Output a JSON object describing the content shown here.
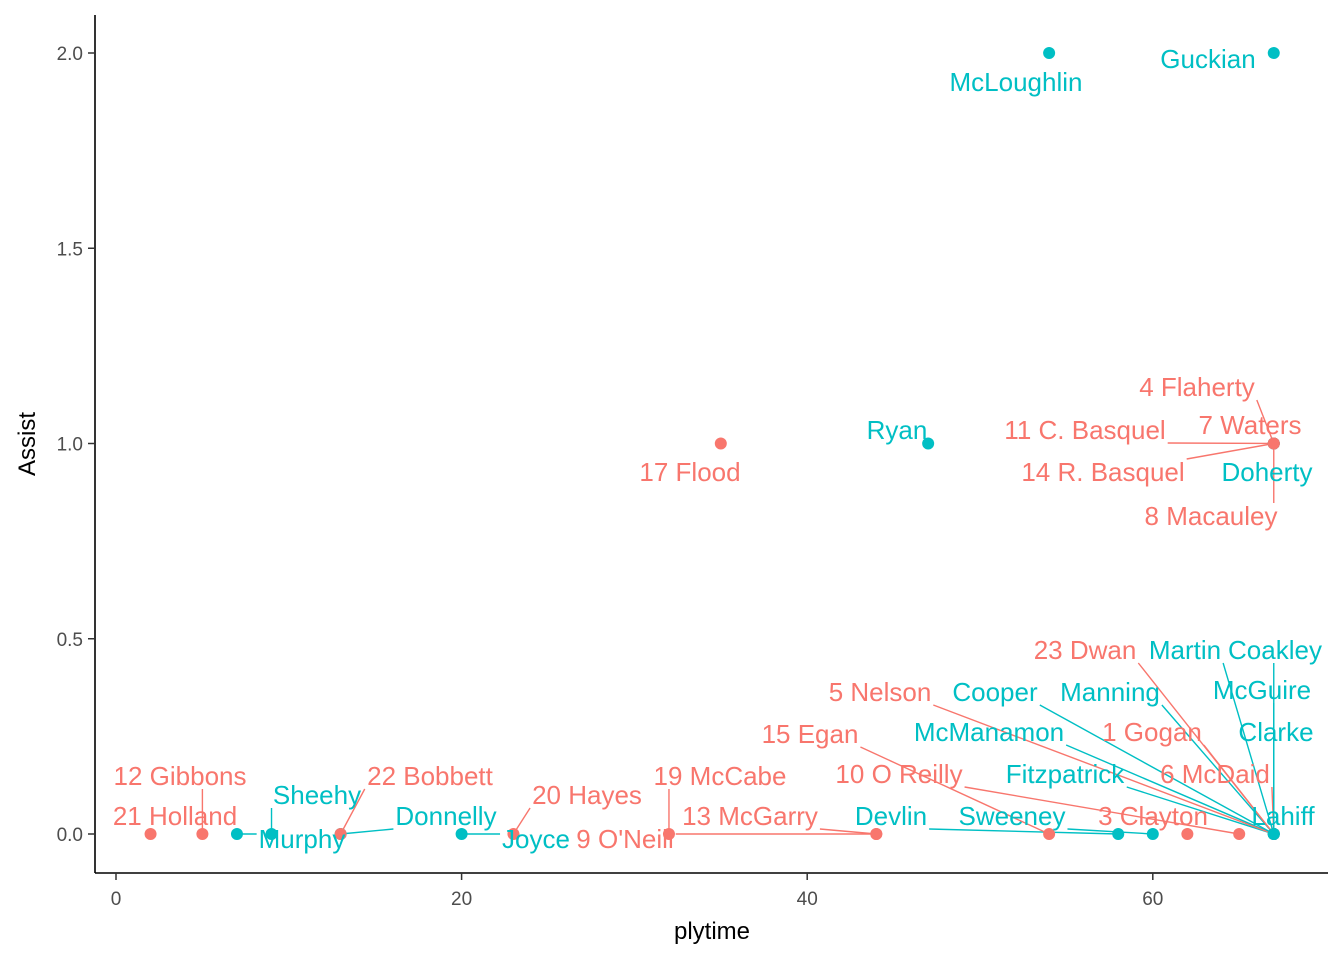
{
  "chart_data": {
    "type": "scatter",
    "title": "",
    "xlabel": "plytime",
    "ylabel": "Assist",
    "xlim": [
      -1,
      70
    ],
    "ylim": [
      -0.1,
      2.1
    ],
    "xticks": [
      0,
      20,
      40,
      60
    ],
    "xtick_labels": [
      "0",
      "20",
      "40",
      "60"
    ],
    "yticks": [
      0,
      0.5,
      1,
      1.5,
      2
    ],
    "ytick_labels": [
      "0.0",
      "0.5",
      "1.0",
      "1.5",
      "2.0"
    ],
    "grid": false,
    "legend": "none",
    "colors": {
      "red": "#F8766D",
      "teal": "#00BFC4"
    },
    "points": [
      {
        "label": "Guckian",
        "x": 67,
        "y": 2,
        "group": "teal"
      },
      {
        "label": "McLoughlin",
        "x": 54,
        "y": 2,
        "group": "teal"
      },
      {
        "label": "Ryan",
        "x": 47,
        "y": 1,
        "group": "teal"
      },
      {
        "label": "17 Flood",
        "x": 35,
        "y": 1,
        "group": "red"
      },
      {
        "label": "4 Flaherty",
        "x": 67,
        "y": 1,
        "group": "red"
      },
      {
        "label": "7 Waters",
        "x": 67,
        "y": 1,
        "group": "red"
      },
      {
        "label": "11 C. Basquel",
        "x": 67,
        "y": 1,
        "group": "red"
      },
      {
        "label": "14 R. Basquel",
        "x": 67,
        "y": 1,
        "group": "red"
      },
      {
        "label": "Doherty",
        "x": 67,
        "y": 1,
        "group": "teal"
      },
      {
        "label": "8 Macauley",
        "x": 67,
        "y": 1,
        "group": "red"
      },
      {
        "label": "McGuire",
        "x": 67,
        "y": 0,
        "group": "teal"
      },
      {
        "label": "McManamon",
        "x": 67,
        "y": 0,
        "group": "teal"
      },
      {
        "label": "1 Gogan",
        "x": 67,
        "y": 0,
        "group": "red"
      },
      {
        "label": "Clarke",
        "x": 67,
        "y": 0,
        "group": "teal"
      },
      {
        "label": "10  O Reilly",
        "x": 65,
        "y": 0,
        "group": "red"
      },
      {
        "label": "Fitzpatrick",
        "x": 67,
        "y": 0,
        "group": "teal"
      },
      {
        "label": "6 McDaid",
        "x": 67,
        "y": 0,
        "group": "red"
      },
      {
        "label": "Devlin",
        "x": 58,
        "y": 0,
        "group": "teal"
      },
      {
        "label": "Sweeney",
        "x": 60,
        "y": 0,
        "group": "teal"
      },
      {
        "label": "3 Clayton",
        "x": 62,
        "y": 0,
        "group": "red"
      },
      {
        "label": "Lahiff",
        "x": 67,
        "y": 0,
        "group": "teal"
      },
      {
        "label": "21 Holland",
        "x": 2,
        "y": 0,
        "group": "red"
      },
      {
        "label": "12 Gibbons",
        "x": 5,
        "y": 0,
        "group": "red"
      },
      {
        "label": "Murphy",
        "x": 7,
        "y": 0,
        "group": "teal"
      },
      {
        "label": "Sheehy",
        "x": 9,
        "y": 0,
        "group": "teal"
      },
      {
        "label": "Donnelly",
        "x": 13,
        "y": 0,
        "group": "teal"
      },
      {
        "label": "22 Bobbett",
        "x": 13,
        "y": 0,
        "group": "red"
      },
      {
        "label": "Joyce",
        "x": 20,
        "y": 0,
        "group": "teal"
      },
      {
        "label": "20 Hayes",
        "x": 23,
        "y": 0,
        "group": "red"
      },
      {
        "label": "13 McGarry",
        "x": 44,
        "y": 0,
        "group": "red"
      },
      {
        "label": "19 McCabe",
        "x": 32,
        "y": 0,
        "group": "red"
      },
      {
        "label": "9 O'Neill",
        "x": 44,
        "y": 0,
        "group": "red"
      },
      {
        "label": "15 Egan",
        "x": 54,
        "y": 0,
        "group": "red"
      },
      {
        "label": "5 Nelson",
        "x": 67,
        "y": 0,
        "group": "red"
      },
      {
        "label": "Cooper",
        "x": 67,
        "y": 0,
        "group": "teal"
      },
      {
        "label": "Manning",
        "x": 67,
        "y": 0,
        "group": "teal"
      },
      {
        "label": "23 Dwan",
        "x": 67,
        "y": 0,
        "group": "red"
      },
      {
        "label": "Martin",
        "x": 67,
        "y": 0,
        "group": "teal"
      },
      {
        "label": "Coakley",
        "x": 67,
        "y": 0,
        "group": "teal"
      }
    ]
  }
}
